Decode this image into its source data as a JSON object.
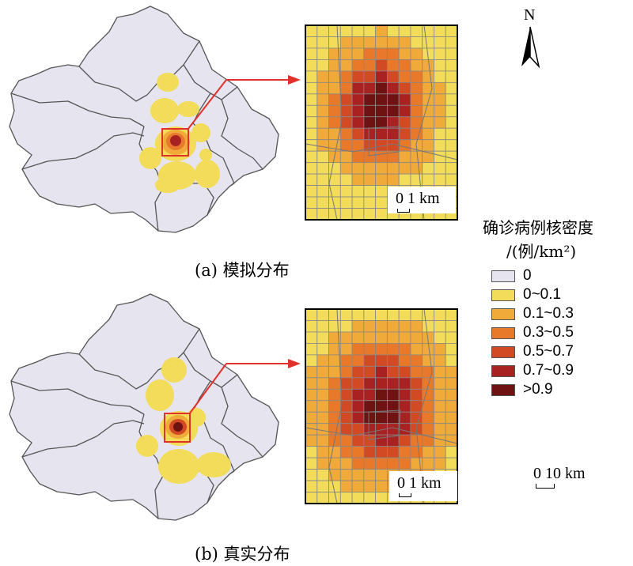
{
  "panel_a": {
    "caption": "(a) 模拟分布",
    "inset_scale": "0 1 km"
  },
  "panel_b": {
    "caption": "(b) 真实分布",
    "inset_scale": "0 1 km"
  },
  "north_arrow": {
    "label": "N"
  },
  "legend": {
    "title_line1": "确诊病例核密度",
    "title_line2": "/(例/km²)",
    "items": [
      {
        "label": "0",
        "color": "#e6e4ef"
      },
      {
        "label": "0~0.1",
        "color": "#f2dc5a"
      },
      {
        "label": "0.1~0.3",
        "color": "#efaa3a"
      },
      {
        "label": "0.3~0.5",
        "color": "#e8792a"
      },
      {
        "label": "0.5~0.7",
        "color": "#d24a24"
      },
      {
        "label": "0.7~0.9",
        "color": "#a92222"
      },
      {
        "label": ">0.9",
        "color": "#6e1212"
      }
    ]
  },
  "map_scale": {
    "label": "0 10 km"
  },
  "colors": {
    "district_fill": "#e6e4ef",
    "boundary": "#555555",
    "highlight": "#e0312a"
  }
}
